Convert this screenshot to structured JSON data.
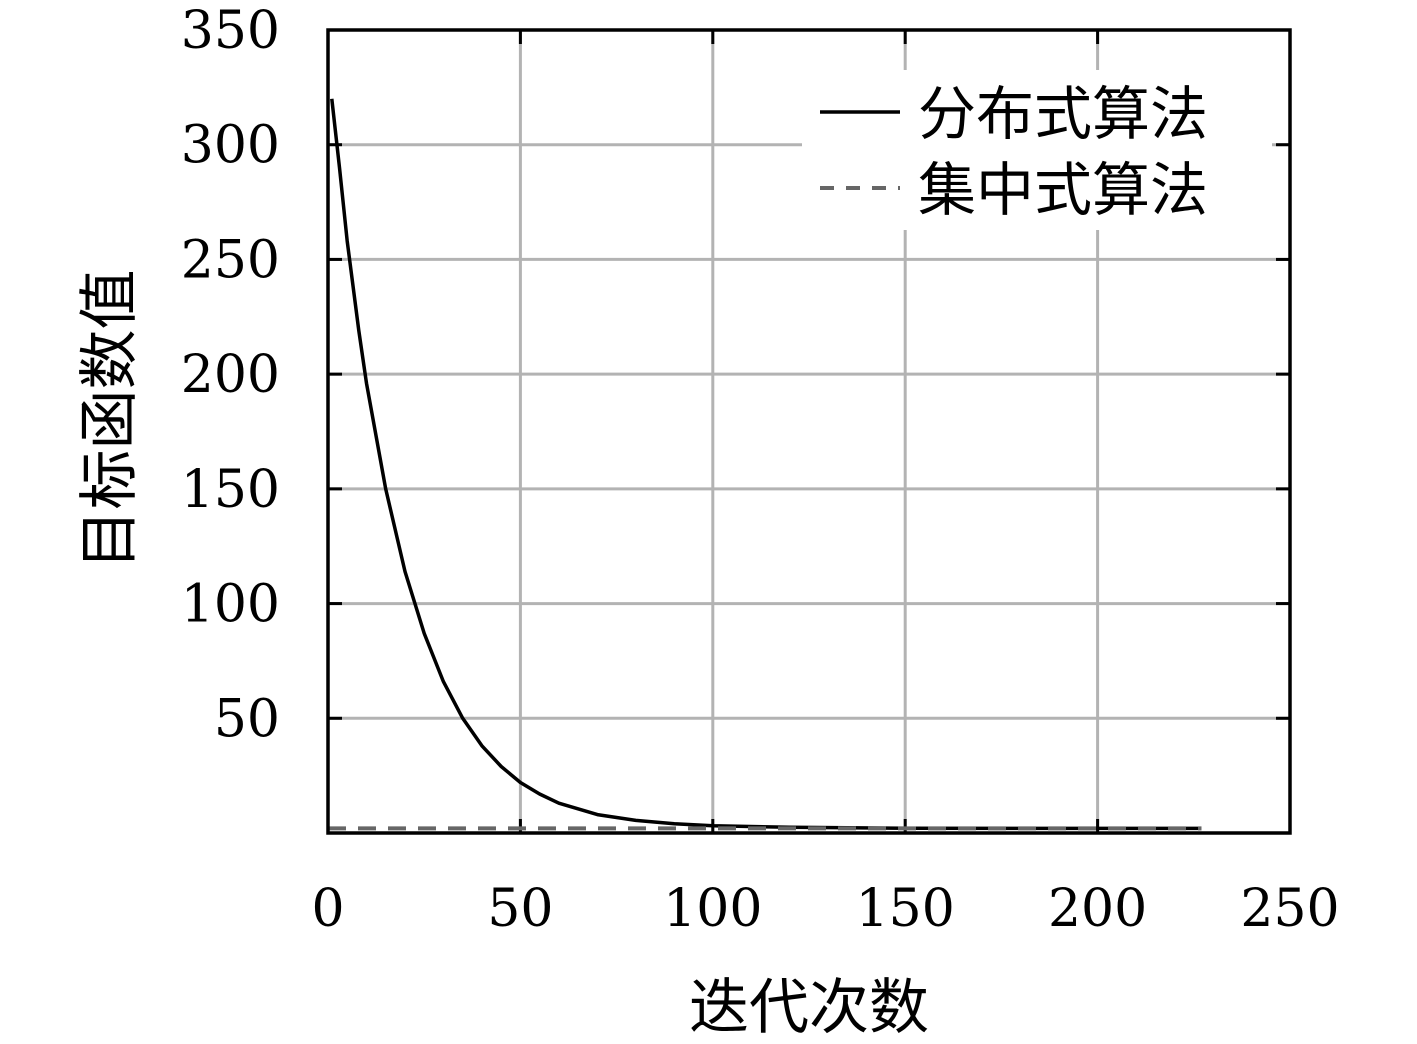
{
  "chart_data": {
    "type": "line",
    "xlabel": "迭代次数",
    "ylabel": "目标函数值",
    "xlim": [
      0,
      250
    ],
    "ylim": [
      0,
      350
    ],
    "x_ticks": [
      0,
      50,
      100,
      150,
      200,
      250
    ],
    "y_ticks": [
      50,
      100,
      150,
      200,
      250,
      300,
      350
    ],
    "grid": true,
    "legend_position": "top-right",
    "series": [
      {
        "name": "分布式算法",
        "style": "solid",
        "color": "#000000",
        "x": [
          1,
          3,
          5,
          8,
          10,
          15,
          20,
          25,
          30,
          35,
          40,
          45,
          50,
          55,
          60,
          70,
          80,
          90,
          100,
          120,
          150,
          180,
          200,
          227
        ],
        "y": [
          320,
          290,
          258,
          219,
          196,
          150,
          114,
          87,
          66,
          50,
          38,
          29,
          22,
          17,
          13,
          8,
          5.5,
          4,
          3.2,
          2.5,
          2.1,
          2.0,
          2.0,
          2.0
        ]
      },
      {
        "name": "集中式算法",
        "style": "dashed",
        "color": "#666666",
        "x": [
          0,
          227
        ],
        "y": [
          2,
          2
        ]
      }
    ]
  }
}
